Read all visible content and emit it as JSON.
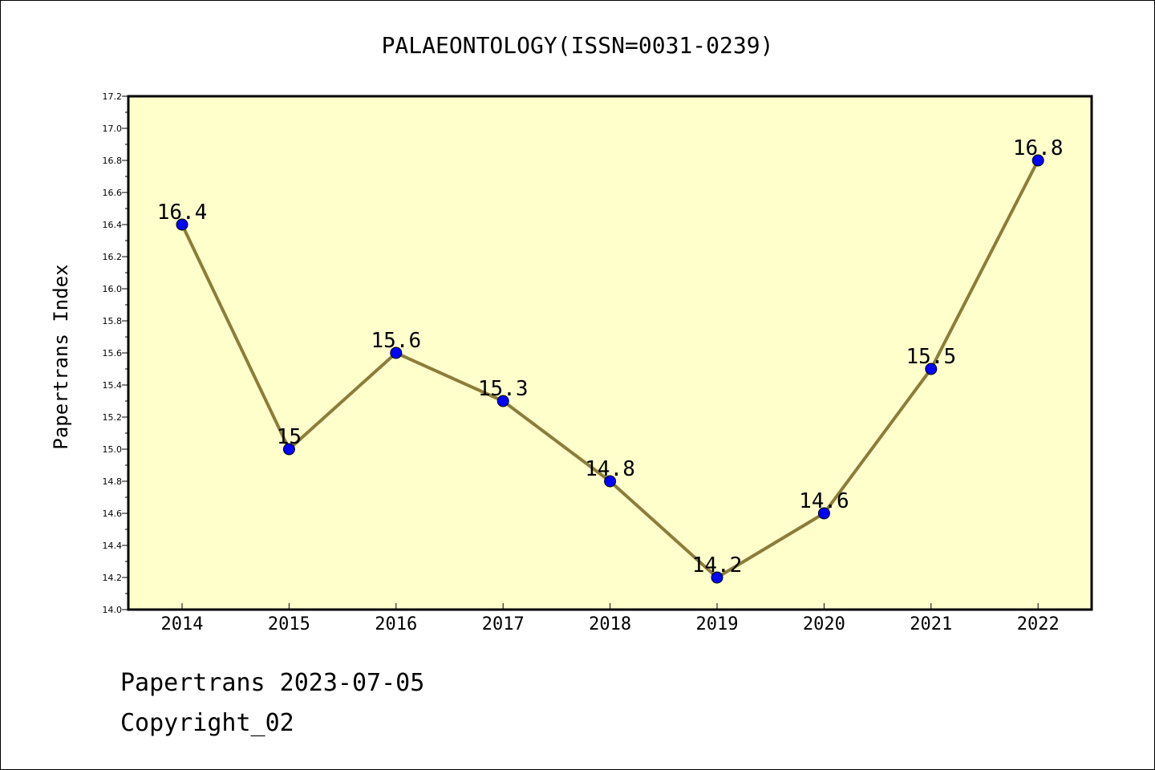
{
  "colors": {
    "plot_background": "#ffffcc",
    "line": "#8b7d3a",
    "marker": "#0000ff",
    "axis": "#000000"
  },
  "chart_data": {
    "type": "line",
    "title": "PALAEONTOLOGY(ISSN=0031-0239)",
    "ylabel": "Papertrans Index",
    "xlabel": "",
    "x": [
      "2014",
      "2015",
      "2016",
      "2017",
      "2018",
      "2019",
      "2020",
      "2021",
      "2022"
    ],
    "series": [
      {
        "values": [
          16.4,
          15.0,
          15.6,
          15.3,
          14.8,
          14.2,
          14.6,
          15.5,
          16.8
        ]
      }
    ],
    "data_labels": [
      "16.4",
      "15",
      "15.6",
      "15.3",
      "14.8",
      "14.2",
      "14.6",
      "15.5",
      "16.8"
    ],
    "ylim": [
      14.0,
      17.2
    ],
    "yticks": [
      "14.0",
      "14.2",
      "14.4",
      "14.6",
      "14.8",
      "15.0",
      "15.2",
      "15.4",
      "15.6",
      "15.8",
      "16.0",
      "16.2",
      "16.4",
      "16.6",
      "16.8",
      "17.0",
      "17.2"
    ],
    "grid": false,
    "legend": "none"
  },
  "footer": {
    "line1": "Papertrans 2023-07-05",
    "line2": "Copyright_02"
  }
}
